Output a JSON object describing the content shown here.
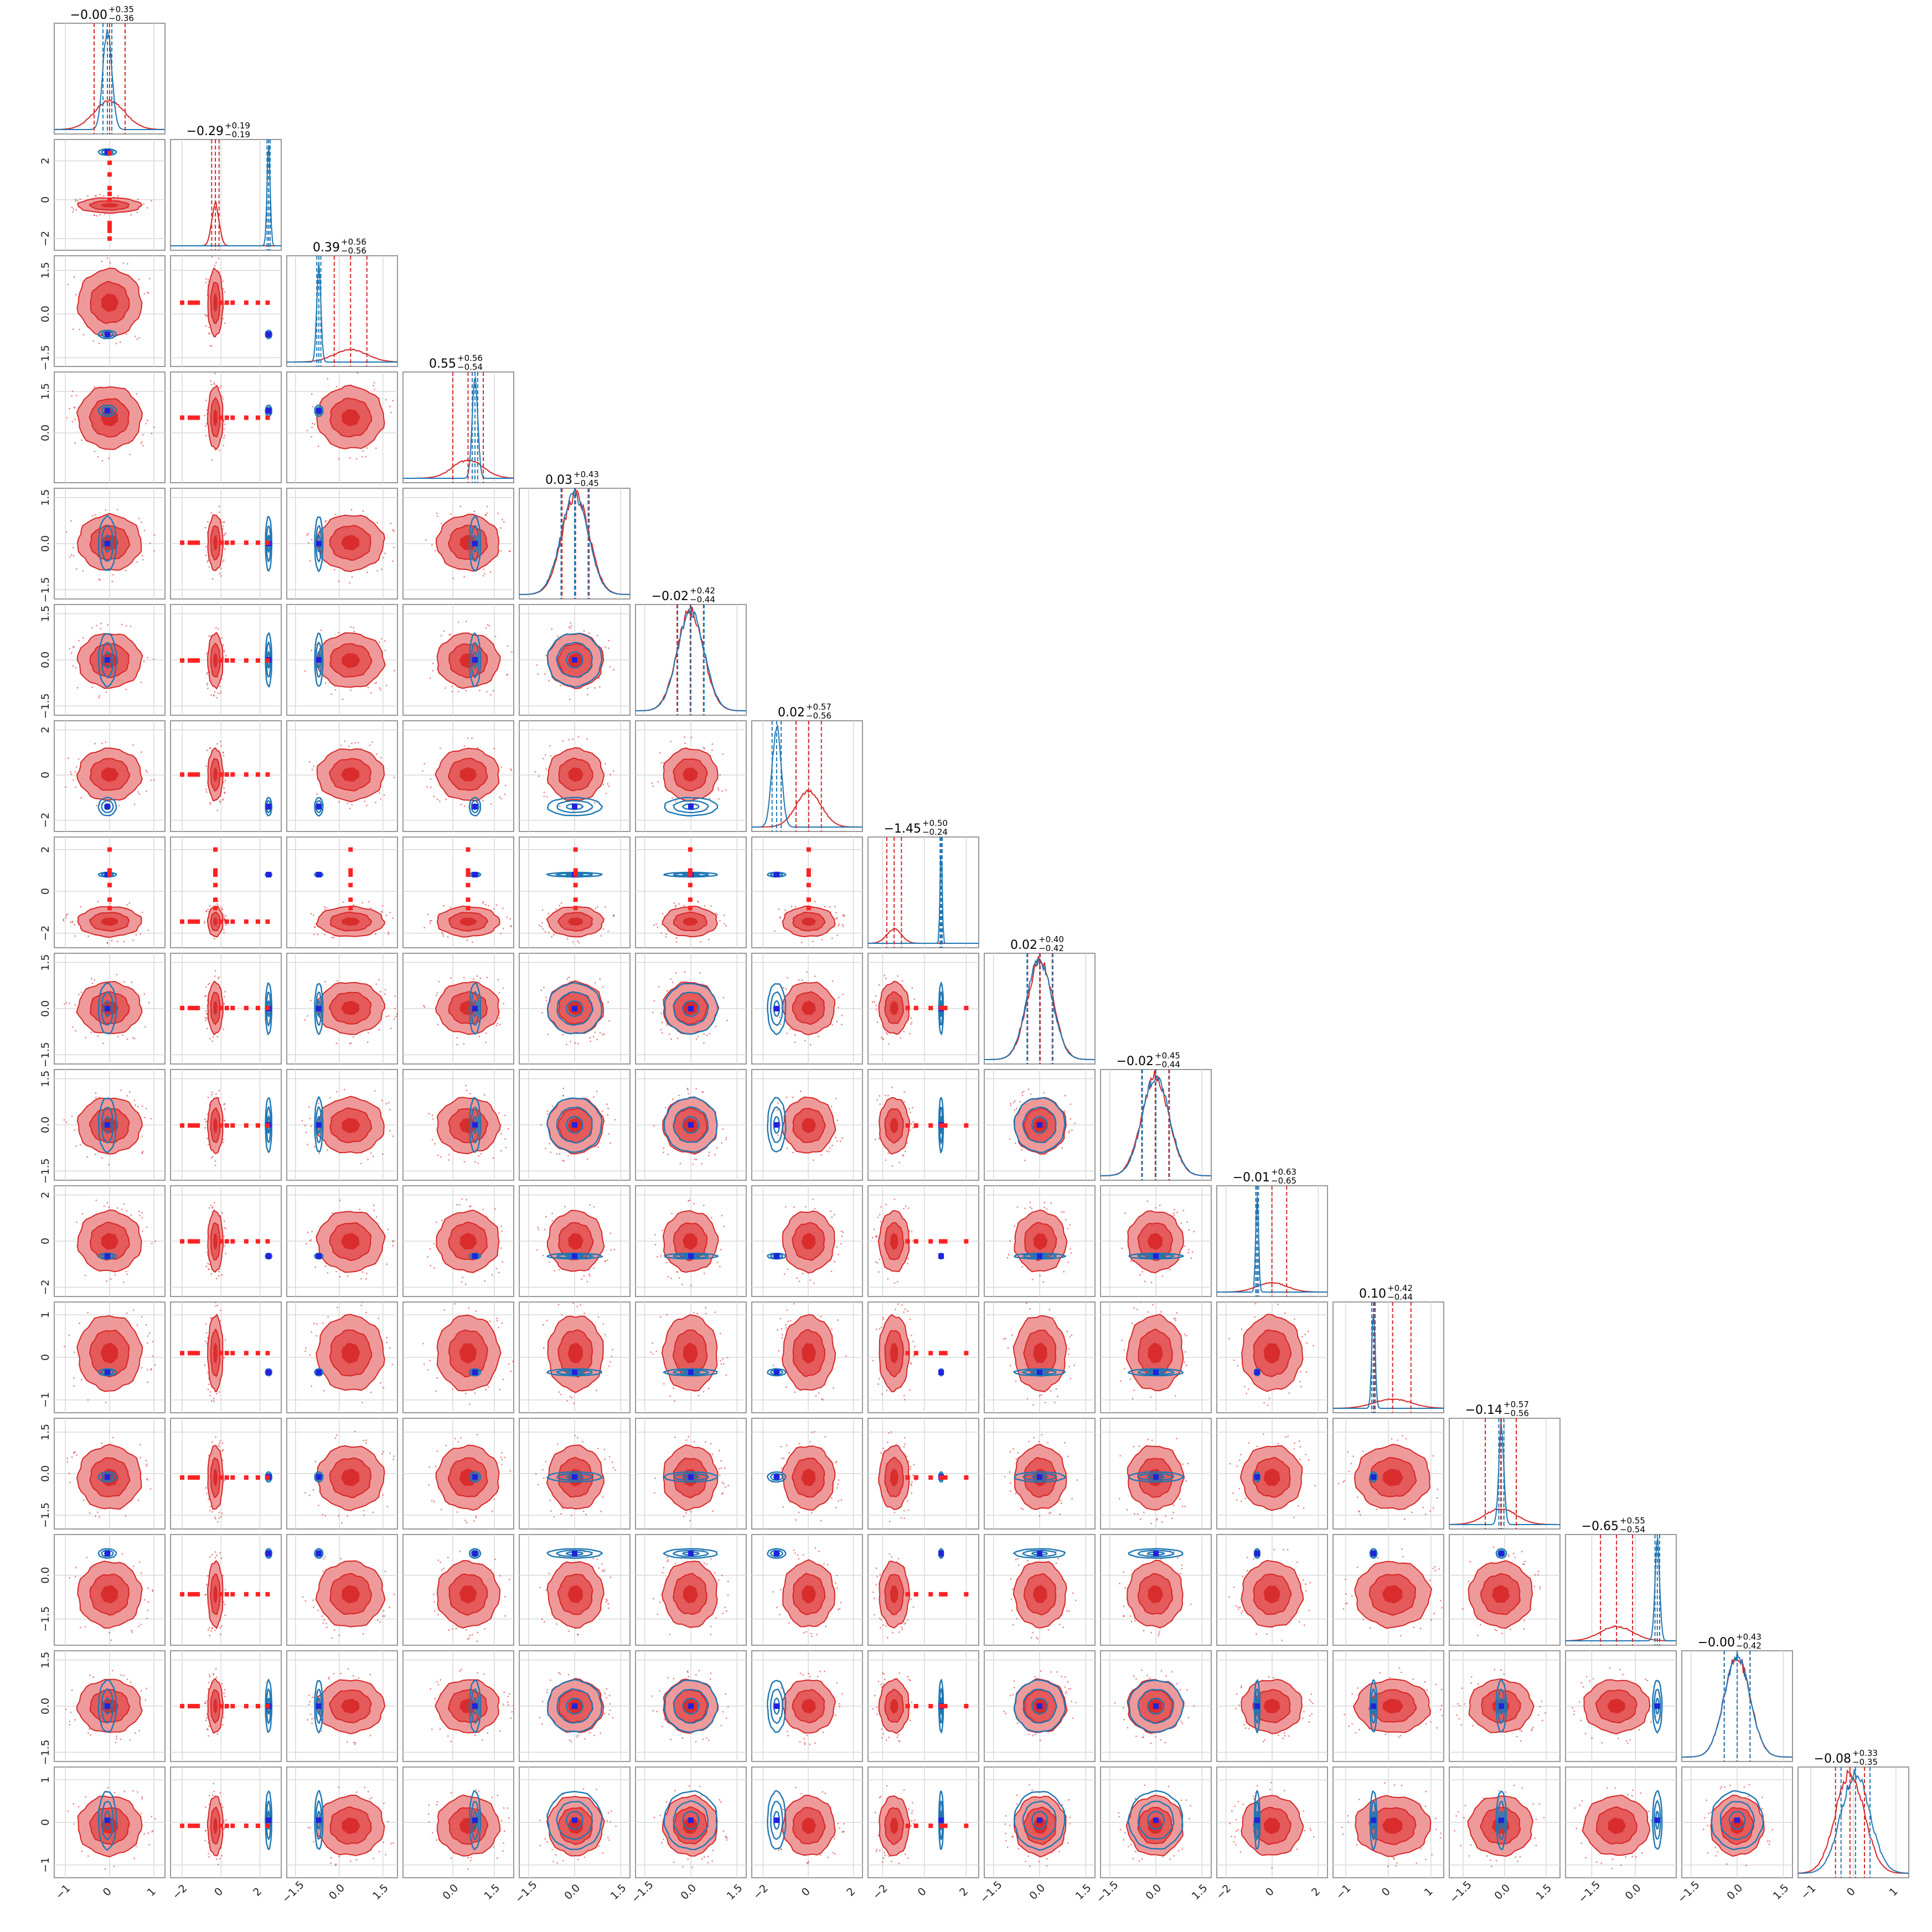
{
  "chart_data": {
    "type": "scatter",
    "description": "corner",
    "n_params": 16,
    "colors": {
      "red": "#e03b3b",
      "red_light": "#ef9a9a",
      "red_mid": "#e55a5a",
      "red_dark": "#d62728",
      "blue": "#1f77b4",
      "marker_blue": "#2222dd",
      "marker_red": "#ff2222",
      "truth_dark": "#1f2a6b"
    },
    "diagonal_titles": [
      {
        "value": "−0.00",
        "plus": "+0.35",
        "minus": "−0.36"
      },
      {
        "value": "−0.29",
        "plus": "+0.19",
        "minus": "−0.19"
      },
      {
        "value": "0.39",
        "plus": "+0.56",
        "minus": "−0.56"
      },
      {
        "value": "0.55",
        "plus": "+0.56",
        "minus": "−0.54"
      },
      {
        "value": "0.03",
        "plus": "+0.43",
        "minus": "−0.45"
      },
      {
        "value": "−0.02",
        "plus": "+0.42",
        "minus": "−0.44"
      },
      {
        "value": "0.02",
        "plus": "+0.57",
        "minus": "−0.56"
      },
      {
        "value": "−1.45",
        "plus": "+0.50",
        "minus": "−0.24"
      },
      {
        "value": "0.02",
        "plus": "+0.40",
        "minus": "−0.42"
      },
      {
        "value": "−0.02",
        "plus": "+0.45",
        "minus": "−0.44"
      },
      {
        "value": "−0.01",
        "plus": "+0.63",
        "minus": "−0.65"
      },
      {
        "value": "0.10",
        "plus": "+0.42",
        "minus": "−0.44"
      },
      {
        "value": "−0.14",
        "plus": "+0.57",
        "minus": "−0.56"
      },
      {
        "value": "−0.65",
        "plus": "+0.55",
        "minus": "−0.54"
      },
      {
        "value": "−0.00",
        "plus": "+0.43",
        "minus": "−0.42"
      },
      {
        "value": "−0.08",
        "plus": "+0.33",
        "minus": "−0.35"
      }
    ],
    "params": [
      {
        "range": [
          -1.25,
          1.25
        ],
        "ticks": [
          -1,
          0,
          1
        ],
        "ticklabels": [
          "−1",
          "0",
          "1"
        ],
        "red_mean": 0.0,
        "red_sd": 0.35,
        "blue_mean": -0.05,
        "blue_sd": 0.1,
        "red_pts": []
      },
      {
        "range": [
          -2.6,
          3.1
        ],
        "ticks": [
          -2,
          0,
          2
        ],
        "ticklabels": [
          "−2",
          "0",
          "2"
        ],
        "red_mean": -0.29,
        "red_sd": 0.19,
        "blue_mean": 2.45,
        "blue_sd": 0.08,
        "red_pts": [
          2.4,
          1.9,
          1.3,
          0.6,
          0.3,
          0.0,
          -1.2,
          -1.4,
          -1.6,
          -2.0
        ]
      },
      {
        "range": [
          -1.8,
          2.0
        ],
        "ticks": [
          -1.5,
          0,
          1.5
        ],
        "ticklabels": [
          "−1.5",
          "0.0",
          "1.5"
        ],
        "red_mean": 0.39,
        "red_sd": 0.56,
        "blue_mean": -0.7,
        "blue_sd": 0.07,
        "red_pts": []
      },
      {
        "range": [
          -1.8,
          2.2
        ],
        "ticks": [
          0,
          1.5
        ],
        "ticklabels": [
          "0.0",
          "1.5"
        ],
        "extra_ticklabel": "−1.5",
        "red_mean": 0.55,
        "red_sd": 0.55,
        "blue_mean": 0.8,
        "blue_sd": 0.1,
        "red_pts": []
      },
      {
        "range": [
          -1.8,
          1.8
        ],
        "ticks": [
          -1.5,
          0,
          1.5
        ],
        "ticklabels": [
          "−1.5",
          "0.0",
          "1.5"
        ],
        "red_mean": 0.03,
        "red_sd": 0.44,
        "blue_mean": 0.0,
        "blue_sd": 0.44,
        "red_pts": []
      },
      {
        "range": [
          -1.8,
          1.8
        ],
        "ticks": [
          -1.5,
          0,
          1.5
        ],
        "ticklabels": [
          "−1.5",
          "0.0",
          "1.5"
        ],
        "red_mean": -0.02,
        "red_sd": 0.43,
        "blue_mean": 0.0,
        "blue_sd": 0.43,
        "red_pts": []
      },
      {
        "range": [
          -2.5,
          2.4
        ],
        "ticks": [
          -2,
          0,
          2
        ],
        "ticklabels": [
          "−2",
          "0",
          "2"
        ],
        "red_mean": 0.02,
        "red_sd": 0.56,
        "blue_mean": -1.4,
        "blue_sd": 0.2,
        "red_pts": []
      },
      {
        "range": [
          -2.7,
          2.6
        ],
        "ticks": [
          -2,
          0,
          2
        ],
        "ticklabels": [
          "−2",
          "0",
          "2"
        ],
        "red_mean": -1.45,
        "red_sd": 0.35,
        "blue_mean": 0.8,
        "blue_sd": 0.05,
        "red_pts": [
          2.0,
          1.0,
          0.8,
          0.3,
          -0.4,
          -0.8
        ]
      },
      {
        "range": [
          -1.8,
          1.8
        ],
        "ticks": [
          -1.5,
          0,
          1.5
        ],
        "ticklabels": [
          "−1.5",
          "0.0",
          "1.5"
        ],
        "red_mean": 0.02,
        "red_sd": 0.41,
        "blue_mean": 0.0,
        "blue_sd": 0.41,
        "red_pts": []
      },
      {
        "range": [
          -1.8,
          1.8
        ],
        "ticks": [
          -1.5,
          0,
          1.5
        ],
        "ticklabels": [
          "−1.5",
          "0.0",
          "1.5"
        ],
        "red_mean": -0.02,
        "red_sd": 0.44,
        "blue_mean": 0.0,
        "blue_sd": 0.44,
        "red_pts": []
      },
      {
        "range": [
          -2.4,
          2.4
        ],
        "ticks": [
          -2,
          0,
          2
        ],
        "ticklabels": [
          "−2",
          "0",
          "2"
        ],
        "red_mean": -0.01,
        "red_sd": 0.64,
        "blue_mean": -0.65,
        "blue_sd": 0.06,
        "red_pts": []
      },
      {
        "range": [
          -1.3,
          1.3
        ],
        "ticks": [
          -1,
          0,
          1
        ],
        "ticklabels": [
          "−1",
          "0",
          "1"
        ],
        "red_mean": 0.1,
        "red_sd": 0.43,
        "blue_mean": -0.35,
        "blue_sd": 0.04,
        "red_pts": []
      },
      {
        "range": [
          -2.0,
          2.0
        ],
        "ticks": [
          -1.5,
          0,
          1.5
        ],
        "ticklabels": [
          "−1.5",
          "0.0",
          "1.5"
        ],
        "red_mean": -0.14,
        "red_sd": 0.56,
        "blue_mean": -0.12,
        "blue_sd": 0.09,
        "red_pts": []
      },
      {
        "range": [
          -2.4,
          1.4
        ],
        "ticks": [
          -1.5,
          0
        ],
        "ticklabels": [
          "−1.5",
          "0.0"
        ],
        "red_mean": -0.65,
        "red_sd": 0.55,
        "blue_mean": 0.75,
        "blue_sd": 0.08,
        "red_pts": []
      },
      {
        "range": [
          -1.8,
          1.8
        ],
        "ticks": [
          -1.5,
          0,
          1.5
        ],
        "ticklabels": [
          "−1.5",
          "0.0",
          "1.5"
        ],
        "red_mean": 0.0,
        "red_sd": 0.42,
        "blue_mean": 0.0,
        "blue_sd": 0.42,
        "red_pts": []
      },
      {
        "range": [
          -1.3,
          1.3
        ],
        "ticks": [
          -1,
          0,
          1
        ],
        "ticklabels": [
          "−1",
          "0",
          "1"
        ],
        "red_mean": -0.08,
        "red_sd": 0.34,
        "blue_mean": 0.05,
        "blue_sd": 0.34,
        "red_pts": []
      }
    ]
  }
}
